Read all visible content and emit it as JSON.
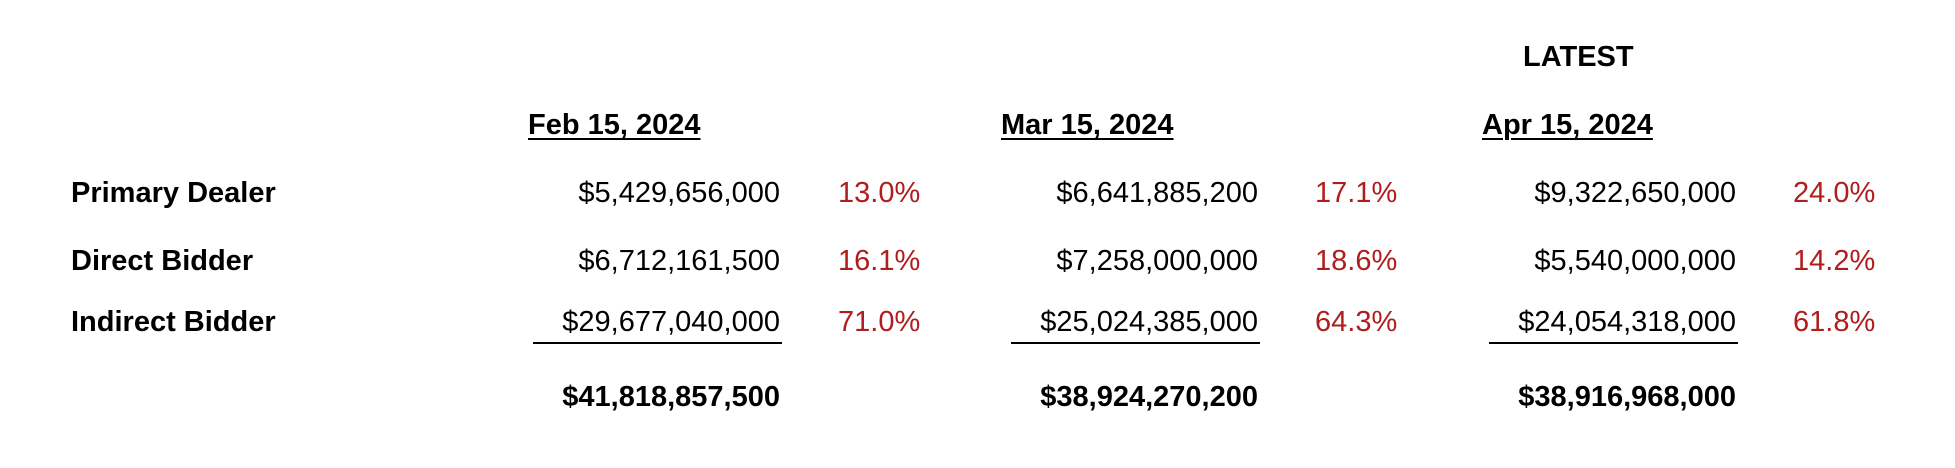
{
  "latest_label": "LATEST",
  "columns": [
    {
      "date": "Feb 15, 2024",
      "primary_dealer": {
        "amount": "$5,429,656,000",
        "pct": "13.0%"
      },
      "direct_bidder": {
        "amount": "$6,712,161,500",
        "pct": "16.1%"
      },
      "indirect_bidder": {
        "amount": "$29,677,040,000",
        "pct": "71.0%"
      },
      "total": "$41,818,857,500"
    },
    {
      "date": "Mar 15, 2024",
      "primary_dealer": {
        "amount": "$6,641,885,200",
        "pct": "17.1%"
      },
      "direct_bidder": {
        "amount": "$7,258,000,000",
        "pct": "18.6%"
      },
      "indirect_bidder": {
        "amount": "$25,024,385,000",
        "pct": "64.3%"
      },
      "total": "$38,924,270,200"
    },
    {
      "date": "Apr 15, 2024",
      "primary_dealer": {
        "amount": "$9,322,650,000",
        "pct": "24.0%"
      },
      "direct_bidder": {
        "amount": "$5,540,000,000",
        "pct": "14.2%"
      },
      "indirect_bidder": {
        "amount": "$24,054,318,000",
        "pct": "61.8%"
      },
      "total": "$38,916,968,000"
    }
  ],
  "rows": {
    "primary_dealer": "Primary Dealer",
    "direct_bidder": "Direct Bidder",
    "indirect_bidder": "Indirect Bidder"
  },
  "colors": {
    "percent_text": "#b01d1d",
    "text": "#000000",
    "background": "#ffffff"
  }
}
